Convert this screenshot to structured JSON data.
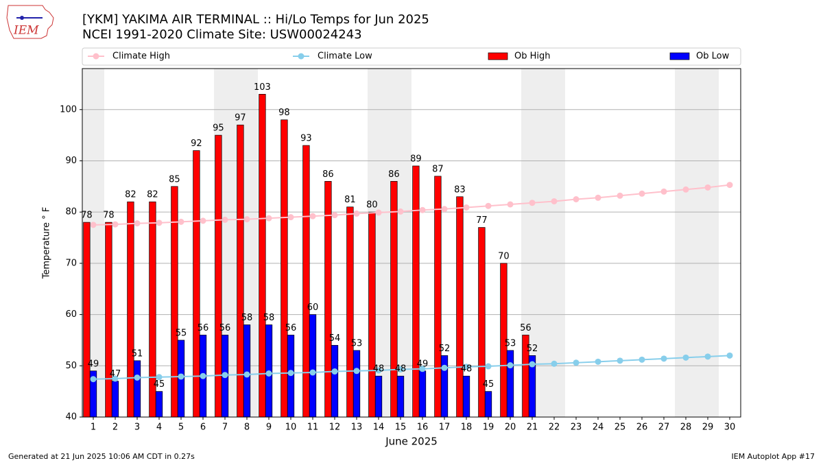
{
  "logo_text": "IEM",
  "chart_data": {
    "type": "bar_line",
    "title": "[YKM] YAKIMA AIR TERMINAL :: Hi/Lo Temps for Jun 2025",
    "subtitle": "NCEI 1991-2020 Climate Site: USW00024243",
    "x_label": "June 2025",
    "y_label": "Temperature ° F",
    "x": [
      1,
      2,
      3,
      4,
      5,
      6,
      7,
      8,
      9,
      10,
      11,
      12,
      13,
      14,
      15,
      16,
      17,
      18,
      19,
      20,
      21,
      22,
      23,
      24,
      25,
      26,
      27,
      28,
      29,
      30
    ],
    "xlim": [
      0.5,
      30.5
    ],
    "xticks": [
      1,
      2,
      3,
      4,
      5,
      6,
      7,
      8,
      9,
      10,
      11,
      12,
      13,
      14,
      15,
      16,
      17,
      18,
      19,
      20,
      21,
      22,
      23,
      24,
      25,
      26,
      27,
      28,
      29,
      30
    ],
    "ylim": [
      40,
      108
    ],
    "yticks": [
      40,
      50,
      60,
      70,
      80,
      90,
      100
    ],
    "grid": true,
    "shaded_days": [
      1,
      7,
      8,
      14,
      15,
      21,
      22,
      28,
      29
    ],
    "series": [
      {
        "name": "Climate High",
        "kind": "line",
        "color": "#ffc0cb",
        "values": [
          77.5,
          77.6,
          77.8,
          77.9,
          78.1,
          78.3,
          78.5,
          78.6,
          78.8,
          79.0,
          79.2,
          79.4,
          79.7,
          79.9,
          80.1,
          80.4,
          80.6,
          80.9,
          81.2,
          81.5,
          81.8,
          82.1,
          82.5,
          82.8,
          83.2,
          83.6,
          84.0,
          84.4,
          84.8,
          85.3
        ]
      },
      {
        "name": "Climate Low",
        "kind": "line",
        "color": "#87ceeb",
        "values": [
          47.4,
          47.5,
          47.7,
          47.8,
          47.9,
          48.0,
          48.2,
          48.3,
          48.5,
          48.6,
          48.7,
          48.9,
          49.0,
          49.1,
          49.3,
          49.4,
          49.6,
          49.8,
          49.9,
          50.1,
          50.3,
          50.4,
          50.6,
          50.8,
          51.0,
          51.2,
          51.4,
          51.6,
          51.8,
          52.0
        ]
      },
      {
        "name": "Ob High",
        "kind": "bar",
        "color": "#ff0000",
        "values": [
          78,
          78,
          82,
          82,
          85,
          92,
          95,
          97,
          103,
          98,
          93,
          86,
          81,
          80,
          86,
          89,
          87,
          83,
          77,
          70,
          56,
          null,
          null,
          null,
          null,
          null,
          null,
          null,
          null,
          null
        ]
      },
      {
        "name": "Ob Low",
        "kind": "bar",
        "color": "#0000ff",
        "values": [
          49,
          47,
          51,
          45,
          55,
          56,
          56,
          58,
          58,
          56,
          60,
          54,
          53,
          48,
          48,
          49,
          52,
          48,
          45,
          53,
          52,
          null,
          null,
          null,
          null,
          null,
          null,
          null,
          null,
          null
        ]
      }
    ],
    "footer_left": "Generated at 21 Jun 2025 10:06 AM CDT in 0.27s",
    "footer_right": "IEM Autoplot App #17"
  }
}
